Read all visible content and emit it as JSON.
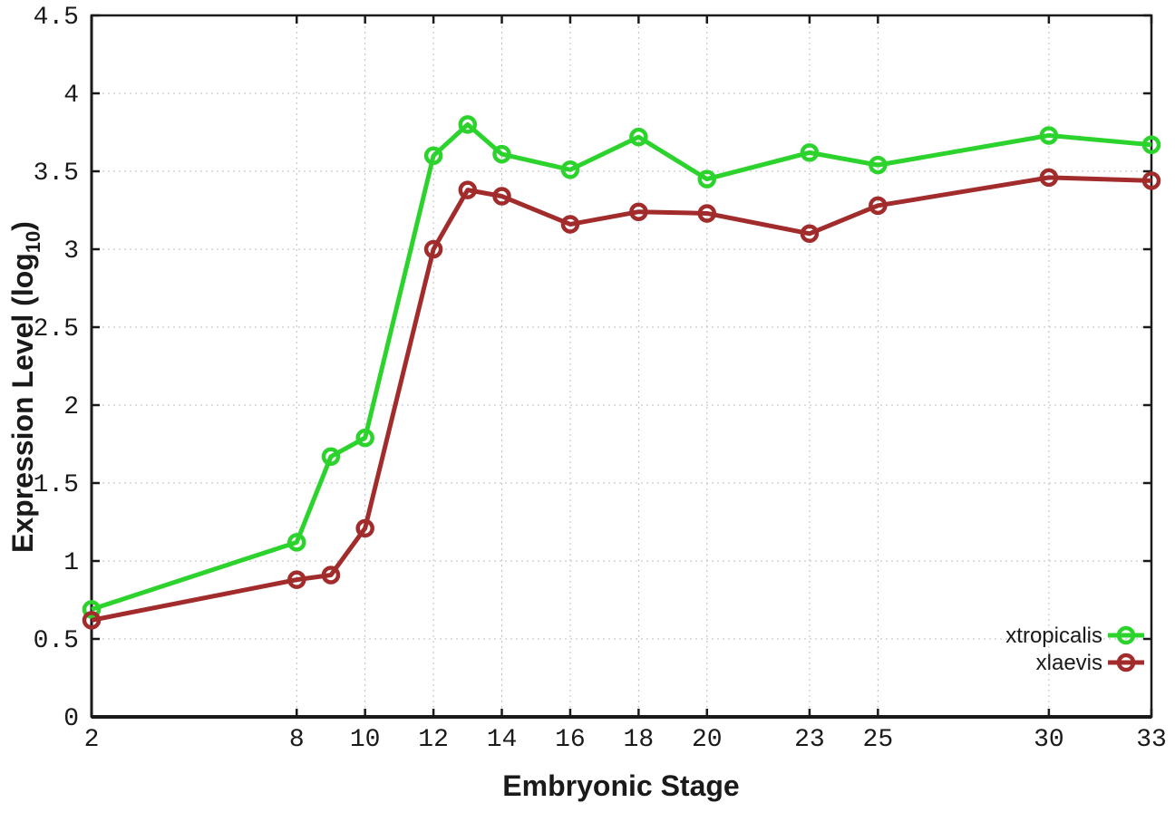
{
  "chart_data": {
    "type": "line",
    "title": "",
    "xlabel": "Embryonic Stage",
    "ylabel_prefix": "Expression Level (log",
    "ylabel_sub": "10",
    "ylabel_suffix": ")",
    "x": [
      2,
      8,
      9,
      10,
      12,
      13,
      14,
      16,
      18,
      20,
      23,
      25,
      30,
      33
    ],
    "xticks": [
      2,
      8,
      10,
      12,
      14,
      16,
      18,
      20,
      23,
      25,
      30,
      33
    ],
    "yticks": [
      0,
      0.5,
      1,
      1.5,
      2,
      2.5,
      3,
      3.5,
      4,
      4.5
    ],
    "xlim": [
      2,
      33
    ],
    "ylim": [
      0,
      4.5
    ],
    "grid": true,
    "legend_position": "bottom-right-inside",
    "series": [
      {
        "name": "xtropicalis",
        "color": "#2dd32d",
        "values": [
          0.69,
          1.12,
          1.67,
          1.79,
          3.6,
          3.8,
          3.61,
          3.51,
          3.72,
          3.45,
          3.62,
          3.54,
          3.73,
          3.67
        ]
      },
      {
        "name": "xlaevis",
        "color": "#a22c2c",
        "values": [
          0.62,
          0.88,
          0.91,
          1.21,
          3.0,
          3.38,
          3.34,
          3.16,
          3.24,
          3.23,
          3.1,
          3.28,
          3.46,
          3.44
        ]
      }
    ],
    "style": {
      "grid_color": "#bdbdbd",
      "axis_color": "#1a1a1a",
      "line_width": 5,
      "marker_radius": 8,
      "marker_stroke": 4.5
    }
  }
}
